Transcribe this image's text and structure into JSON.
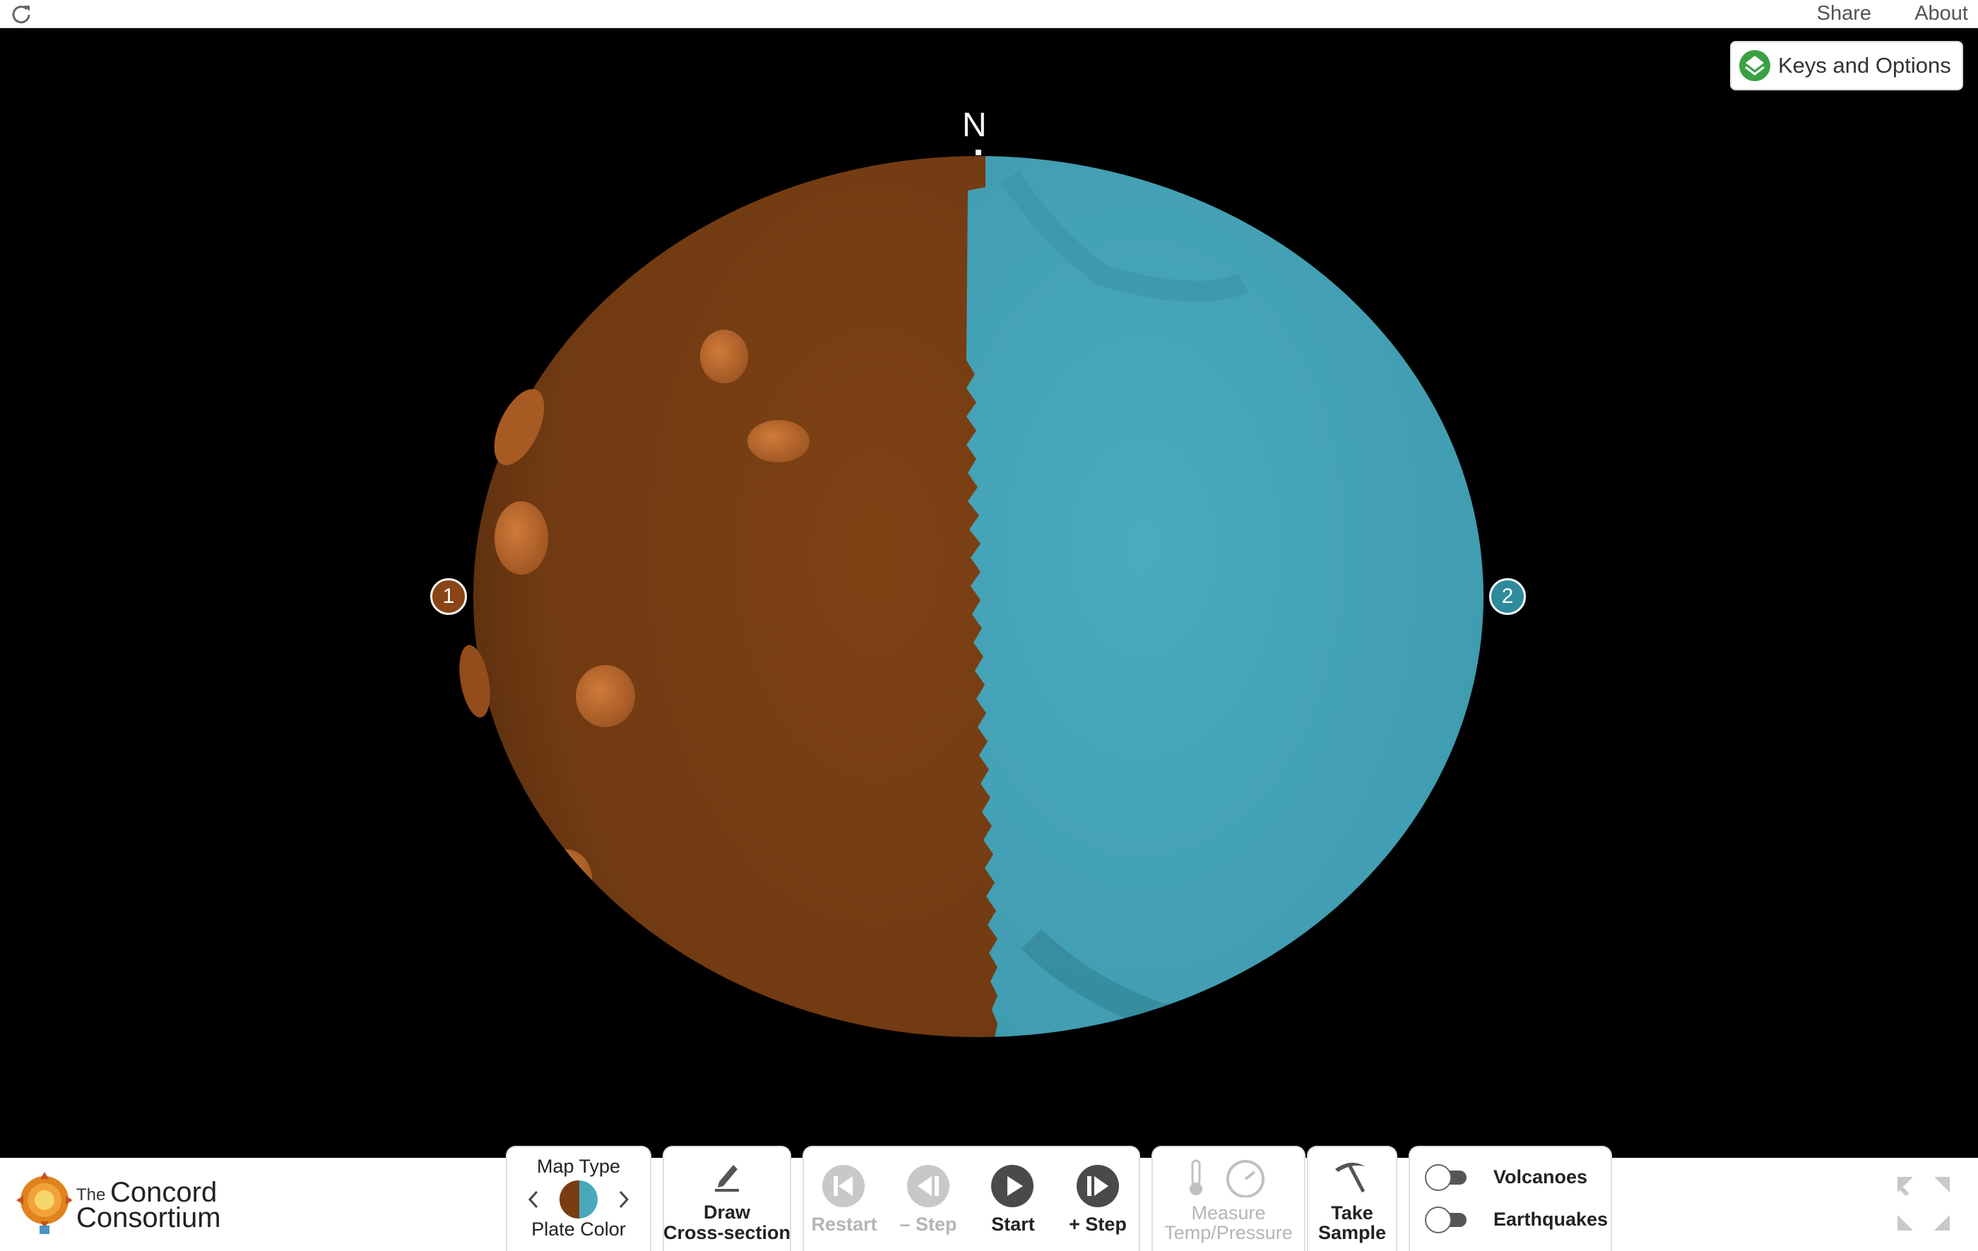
{
  "topbar": {
    "share": "Share",
    "about": "About",
    "reload_icon": "reload-icon"
  },
  "stage": {
    "keys_button": "Keys and Options",
    "north": "N",
    "plate_markers": [
      "1",
      "2"
    ],
    "plate_colors": {
      "plate_1": "#7a3d12",
      "plate_2": "#4aa8bd"
    }
  },
  "branding": {
    "the": "The",
    "line1": "Concord",
    "line2": "Consortium"
  },
  "controls": {
    "map_type": {
      "title": "Map Type",
      "value": "Plate Color"
    },
    "draw": {
      "line1": "Draw",
      "line2": "Cross-section"
    },
    "restart": "Restart",
    "minus_step": "– Step",
    "start": "Start",
    "plus_step": "+ Step",
    "measure": {
      "line1": "Measure",
      "line2": "Temp/Pressure"
    },
    "sample": {
      "line1": "Take",
      "line2": "Sample"
    },
    "volcanoes": "Volcanoes",
    "earthquakes": "Earthquakes"
  }
}
